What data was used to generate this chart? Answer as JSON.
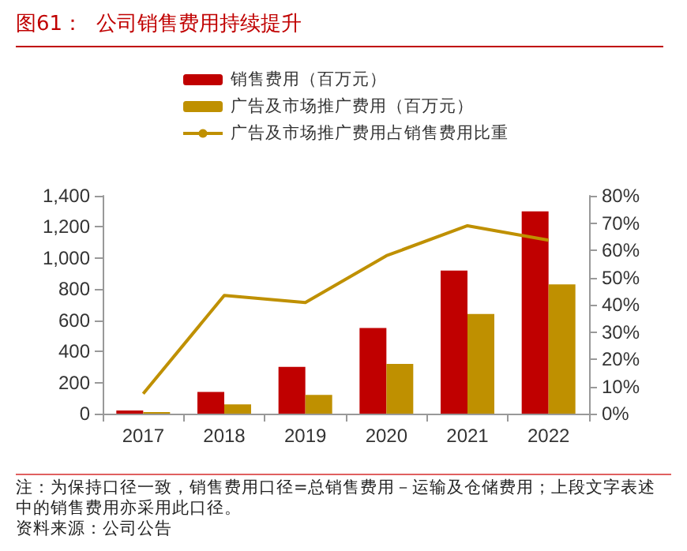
{
  "chart_data": {
    "type": "bar",
    "title": "图61：  公司销售费用持续提升",
    "categories": [
      "2017",
      "2018",
      "2019",
      "2020",
      "2021",
      "2022"
    ],
    "series": [
      {
        "name": "销售费用（百万元）",
        "color": "#c00000",
        "values": [
          20,
          140,
          300,
          550,
          920,
          1300
        ]
      },
      {
        "name": "广告及市场推广费用（百万元）",
        "color": "#bf9000",
        "values": [
          10,
          60,
          120,
          320,
          640,
          830
        ]
      },
      {
        "name": "广告及市场推广费用占销售费用比重",
        "type": "line",
        "axis": "y2",
        "color": "#bf9000",
        "values": [
          7.3,
          43.4,
          40.8,
          58,
          69,
          63.7
        ]
      }
    ],
    "ylim": [
      0,
      1400
    ],
    "yticks": [
      0,
      200,
      400,
      600,
      800,
      {
        "value": 1000,
        "label": "1,000"
      },
      {
        "value": 1200,
        "label": "1,200"
      },
      {
        "value": 1400,
        "label": "1,400"
      }
    ],
    "y2lim": [
      0,
      80
    ],
    "y2ticks": [
      {
        "value": 0,
        "label": "0%"
      },
      {
        "value": 10,
        "label": "10%"
      },
      {
        "value": 20,
        "label": "20%"
      },
      {
        "value": 30,
        "label": "30%"
      },
      {
        "value": 40,
        "label": "40%"
      },
      {
        "value": 50,
        "label": "50%"
      },
      {
        "value": 60,
        "label": "60%"
      },
      {
        "value": 70,
        "label": "70%"
      },
      {
        "value": 80,
        "label": "80%"
      }
    ],
    "grid": false,
    "legend": "top",
    "marker": "none",
    "annotations": [
      "注：为保持口径一致，销售费用口径=总销售费用－运输及仓储费用；上段文字表述中的销售费用亦采用此口径。",
      "资料来源：公司公告"
    ]
  }
}
